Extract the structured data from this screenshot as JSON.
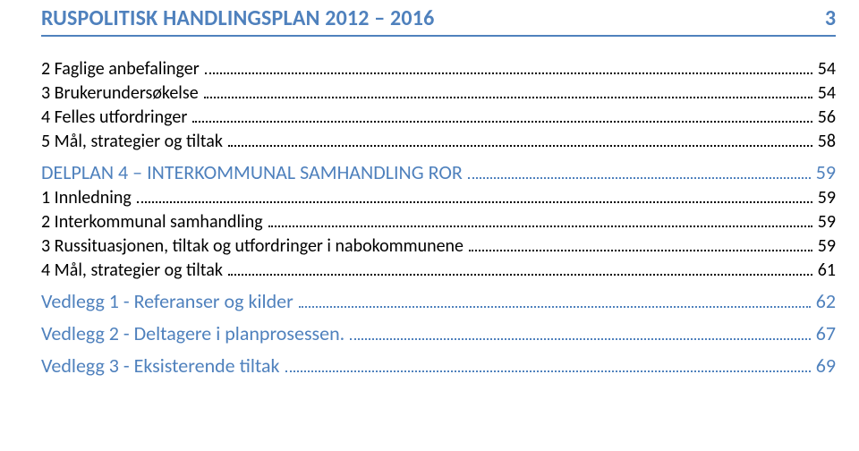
{
  "colors": {
    "accent": "#4f81bd",
    "text": "#000000",
    "header_border": "#4f81bd",
    "background": "#ffffff"
  },
  "header": {
    "title": "RUSPOLITISK HANDLINGSPLAN 2012 – 2016",
    "page_number": "3",
    "title_fontsize": 24,
    "font_weight": 700
  },
  "toc": {
    "font_size": 20,
    "entries": [
      {
        "level": 2,
        "label": "2 Faglige anbefalinger",
        "page": "54"
      },
      {
        "level": 2,
        "label": "3 Brukerundersøkelse",
        "page": "54"
      },
      {
        "level": 2,
        "label": "4 Felles utfordringer",
        "page": "56"
      },
      {
        "level": 2,
        "label": "5 Mål, strategier og tiltak",
        "page": "58"
      },
      {
        "level": 1,
        "label": "DELPLAN 4 – INTERKOMMUNAL SAMHANDLING ROR",
        "page": "59",
        "gap_top": true
      },
      {
        "level": 2,
        "label": "1 Innledning",
        "page": "59"
      },
      {
        "level": 2,
        "label": "2 Interkommunal samhandling",
        "page": "59"
      },
      {
        "level": 2,
        "label": "3 Russituasjonen, tiltak og utfordringer i nabokommunene",
        "page": "59"
      },
      {
        "level": 2,
        "label": "4 Mål, strategier og tiltak",
        "page": "61"
      },
      {
        "level": 1,
        "label": "Vedlegg 1 - Referanser og kilder",
        "page": "62",
        "gap_top": true
      },
      {
        "level": 1,
        "label": "Vedlegg 2 - Deltagere i planprosessen.",
        "page": "67",
        "gap_top": true
      },
      {
        "level": 1,
        "label": "Vedlegg 3 - Eksisterende tiltak",
        "page": "69",
        "gap_top": true
      }
    ]
  }
}
